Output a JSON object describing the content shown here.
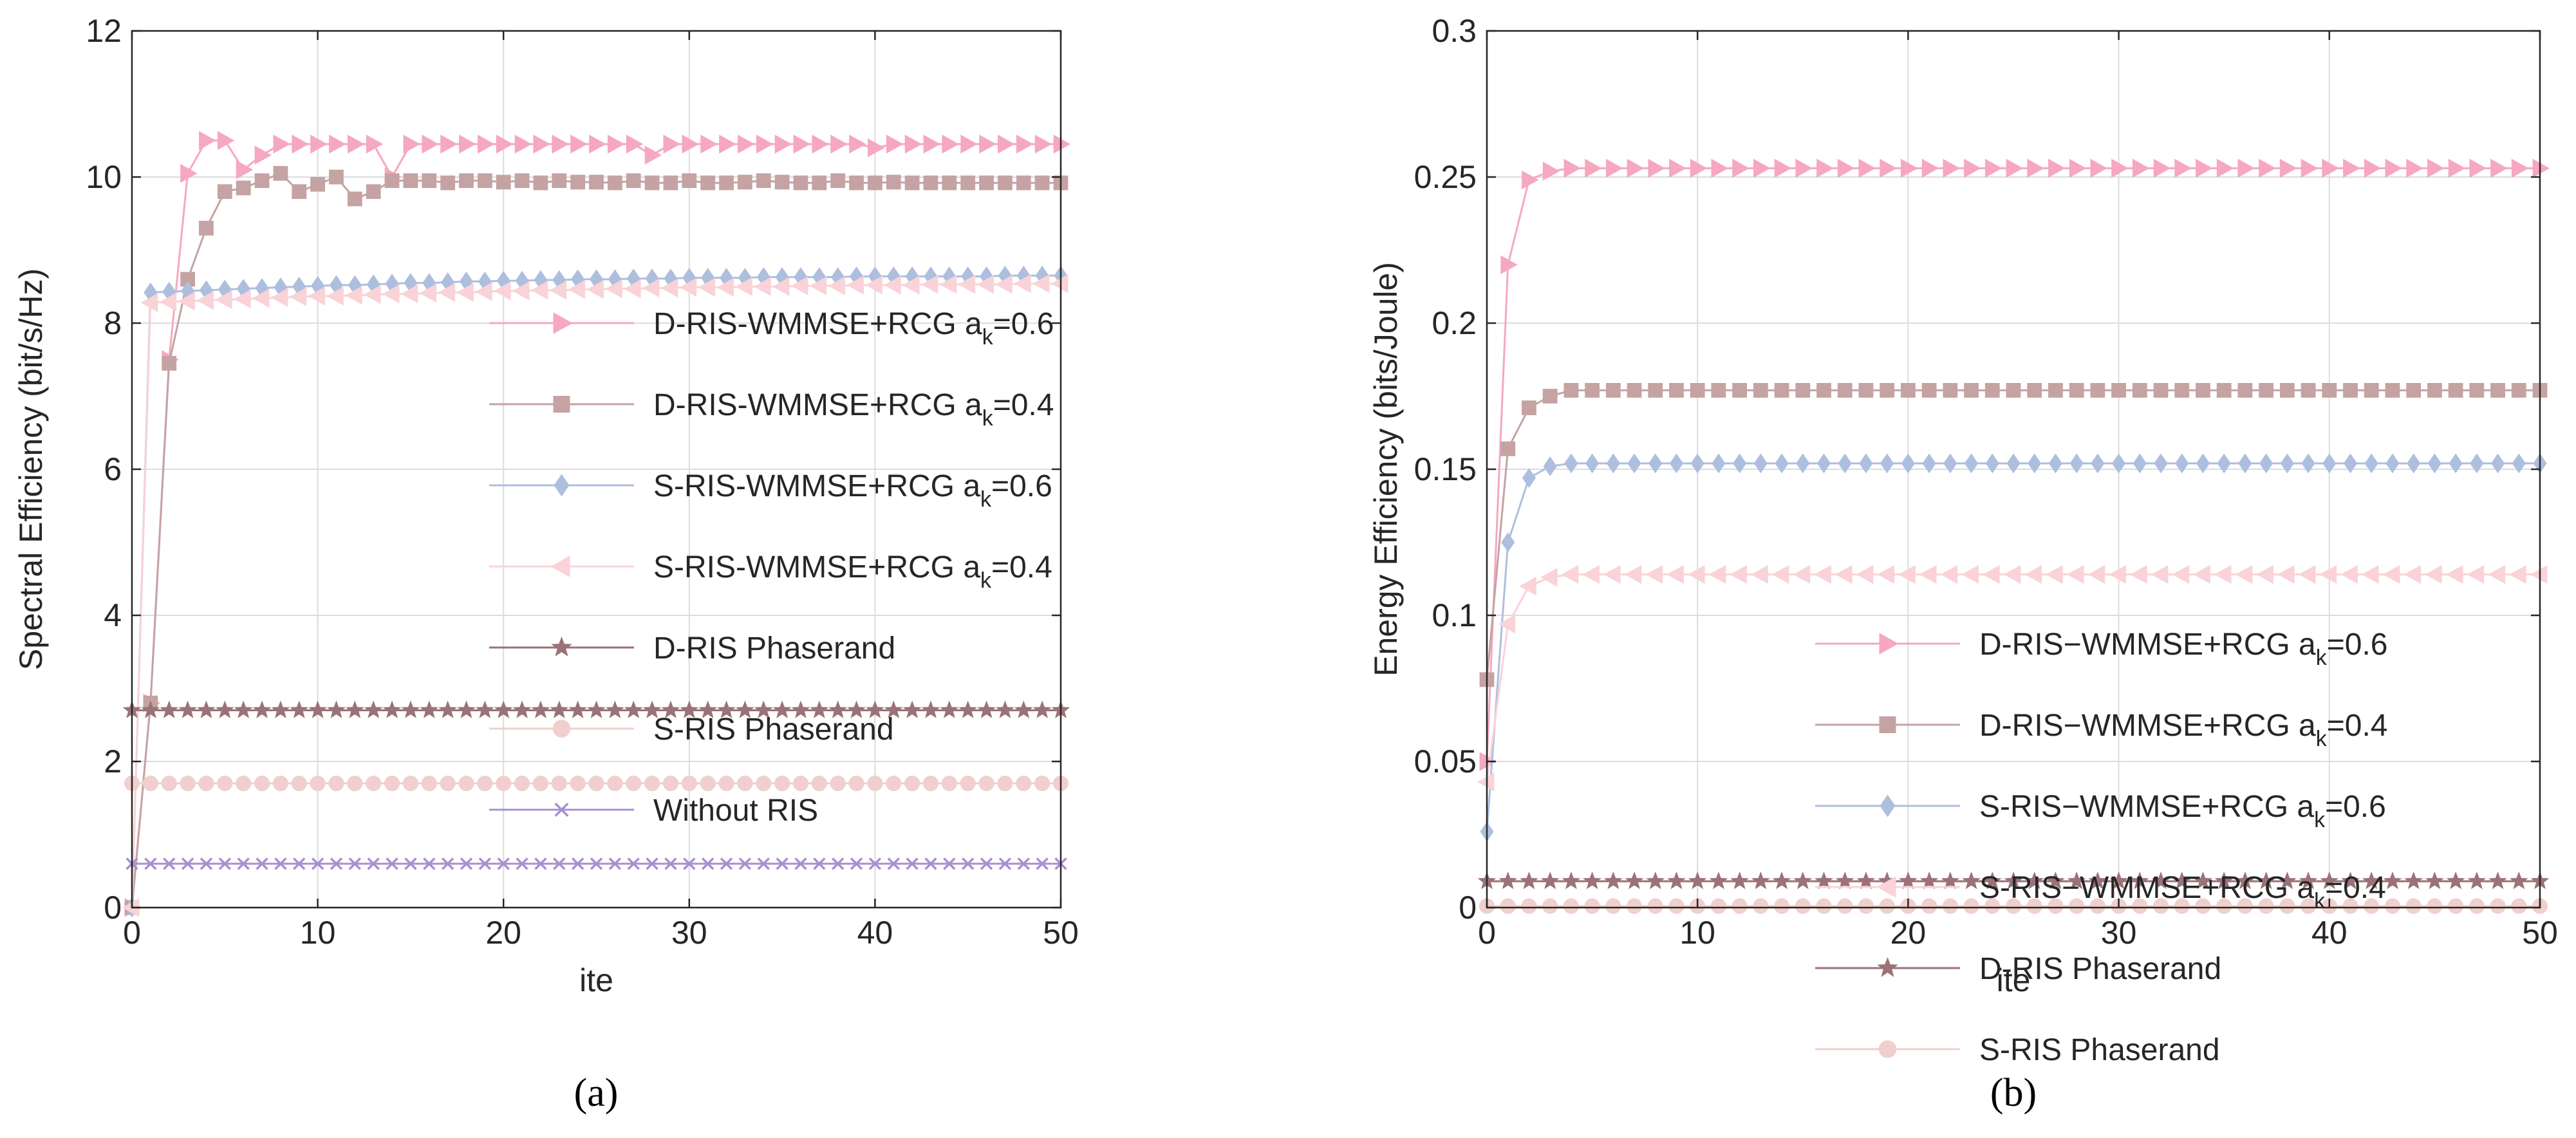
{
  "chart_data": [
    {
      "id": "a",
      "type": "line",
      "caption": "(a)",
      "xlabel": "ite",
      "ylabel": "Spectral Efficiency  (bit/s/Hz)",
      "xlim": [
        0,
        50
      ],
      "ylim": [
        0,
        12
      ],
      "xticks": [
        0,
        10,
        20,
        30,
        40,
        50
      ],
      "yticks": [
        0,
        2,
        4,
        6,
        8,
        10,
        12
      ],
      "grid": true,
      "legend_position": "right-center",
      "series": [
        {
          "name": "D-RIS-WMMSE+RCG a_k=0.6",
          "label": "D-RIS-WMMSE+RCG a",
          "sub": "k",
          "tail": "=0.6",
          "color": "#f5a8bf",
          "marker": "triangle-right",
          "values": [
            0,
            2.8,
            7.5,
            10.05,
            10.5,
            10.5,
            10.1,
            10.3,
            10.45,
            10.45,
            10.45,
            10.45,
            10.45,
            10.45,
            10.0,
            10.45,
            10.45,
            10.45,
            10.45,
            10.45,
            10.45,
            10.45,
            10.45,
            10.45,
            10.45,
            10.45,
            10.45,
            10.45,
            10.3,
            10.45,
            10.45,
            10.45,
            10.45,
            10.45,
            10.45,
            10.45,
            10.45,
            10.45,
            10.45,
            10.45,
            10.4,
            10.45,
            10.45,
            10.45,
            10.45,
            10.45,
            10.45,
            10.45,
            10.45,
            10.45,
            10.45
          ]
        },
        {
          "name": "D-RIS-WMMSE+RCG a_k=0.4",
          "label": "D-RIS-WMMSE+RCG a",
          "sub": "k",
          "tail": "=0.4",
          "color": "#c5a3a3",
          "marker": "square",
          "values": [
            0,
            2.8,
            7.45,
            8.6,
            9.3,
            9.8,
            9.85,
            9.95,
            10.05,
            9.8,
            9.9,
            10.0,
            9.7,
            9.8,
            9.95,
            9.95,
            9.95,
            9.92,
            9.95,
            9.95,
            9.93,
            9.95,
            9.92,
            9.95,
            9.93,
            9.93,
            9.92,
            9.95,
            9.92,
            9.92,
            9.95,
            9.92,
            9.92,
            9.93,
            9.95,
            9.93,
            9.92,
            9.92,
            9.95,
            9.92,
            9.92,
            9.93,
            9.92,
            9.92,
            9.92,
            9.92,
            9.92,
            9.92,
            9.92,
            9.92,
            9.92
          ]
        },
        {
          "name": "S-RIS-WMMSE+RCG a_k=0.6",
          "label": "S-RIS-WMMSE+RCG a",
          "sub": "k",
          "tail": "=0.6",
          "color": "#aebfde",
          "marker": "diamond",
          "values": [
            0,
            8.42,
            8.43,
            8.44,
            8.45,
            8.46,
            8.47,
            8.48,
            8.49,
            8.5,
            8.51,
            8.52,
            8.52,
            8.53,
            8.54,
            8.55,
            8.55,
            8.56,
            8.57,
            8.57,
            8.58,
            8.58,
            8.59,
            8.59,
            8.6,
            8.6,
            8.6,
            8.61,
            8.61,
            8.61,
            8.62,
            8.62,
            8.62,
            8.62,
            8.63,
            8.63,
            8.63,
            8.63,
            8.63,
            8.64,
            8.64,
            8.64,
            8.64,
            8.64,
            8.64,
            8.64,
            8.64,
            8.65,
            8.65,
            8.65,
            8.65
          ]
        },
        {
          "name": "S-RIS-WMMSE+RCG a_k=0.4",
          "label": "S-RIS-WMMSE+RCG a",
          "sub": "k",
          "tail": "=0.4",
          "color": "#f9d3d8",
          "marker": "triangle-left",
          "values": [
            0,
            8.28,
            8.29,
            8.3,
            8.31,
            8.32,
            8.33,
            8.34,
            8.35,
            8.36,
            8.37,
            8.37,
            8.38,
            8.39,
            8.4,
            8.4,
            8.41,
            8.42,
            8.42,
            8.43,
            8.44,
            8.44,
            8.45,
            8.45,
            8.46,
            8.46,
            8.47,
            8.47,
            8.48,
            8.48,
            8.49,
            8.49,
            8.49,
            8.5,
            8.5,
            8.5,
            8.51,
            8.51,
            8.51,
            8.52,
            8.52,
            8.52,
            8.52,
            8.53,
            8.53,
            8.53,
            8.53,
            8.53,
            8.54,
            8.54,
            8.54
          ]
        },
        {
          "name": "D-RIS Phaserand",
          "label": "D-RIS Phaserand",
          "sub": "",
          "tail": "",
          "color": "#9a7277",
          "marker": "star",
          "values": [
            2.7,
            2.7,
            2.7,
            2.7,
            2.7,
            2.7,
            2.7,
            2.7,
            2.7,
            2.7,
            2.7,
            2.7,
            2.7,
            2.7,
            2.7,
            2.7,
            2.7,
            2.7,
            2.7,
            2.7,
            2.7,
            2.7,
            2.7,
            2.7,
            2.7,
            2.7,
            2.7,
            2.7,
            2.7,
            2.7,
            2.7,
            2.7,
            2.7,
            2.7,
            2.7,
            2.7,
            2.7,
            2.7,
            2.7,
            2.7,
            2.7,
            2.7,
            2.7,
            2.7,
            2.7,
            2.7,
            2.7,
            2.7,
            2.7,
            2.7,
            2.7
          ]
        },
        {
          "name": "S-RIS Phaserand",
          "label": "S-RIS Phaserand",
          "sub": "",
          "tail": "",
          "color": "#f0cfcd",
          "marker": "circle",
          "values": [
            1.7,
            1.7,
            1.7,
            1.7,
            1.7,
            1.7,
            1.7,
            1.7,
            1.7,
            1.7,
            1.7,
            1.7,
            1.7,
            1.7,
            1.7,
            1.7,
            1.7,
            1.7,
            1.7,
            1.7,
            1.7,
            1.7,
            1.7,
            1.7,
            1.7,
            1.7,
            1.7,
            1.7,
            1.7,
            1.7,
            1.7,
            1.7,
            1.7,
            1.7,
            1.7,
            1.7,
            1.7,
            1.7,
            1.7,
            1.7,
            1.7,
            1.7,
            1.7,
            1.7,
            1.7,
            1.7,
            1.7,
            1.7,
            1.7,
            1.7,
            1.7
          ]
        },
        {
          "name": "Without RIS",
          "label": "Without RIS",
          "sub": "",
          "tail": "",
          "color": "#a88fd0",
          "marker": "x",
          "values": [
            0.6,
            0.6,
            0.6,
            0.6,
            0.6,
            0.6,
            0.6,
            0.6,
            0.6,
            0.6,
            0.6,
            0.6,
            0.6,
            0.6,
            0.6,
            0.6,
            0.6,
            0.6,
            0.6,
            0.6,
            0.6,
            0.6,
            0.6,
            0.6,
            0.6,
            0.6,
            0.6,
            0.6,
            0.6,
            0.6,
            0.6,
            0.6,
            0.6,
            0.6,
            0.6,
            0.6,
            0.6,
            0.6,
            0.6,
            0.6,
            0.6,
            0.6,
            0.6,
            0.6,
            0.6,
            0.6,
            0.6,
            0.6,
            0.6,
            0.6,
            0.6
          ]
        }
      ]
    },
    {
      "id": "b",
      "type": "line",
      "caption": "(b)",
      "xlabel": "ite",
      "ylabel": "Energy Efficiency  (bits/Joule)",
      "xlim": [
        0,
        50
      ],
      "ylim": [
        0,
        0.3
      ],
      "xticks": [
        0,
        10,
        20,
        30,
        40,
        50
      ],
      "yticks": [
        0,
        0.05,
        0.1,
        0.15,
        0.2,
        0.25,
        0.3
      ],
      "grid": true,
      "legend_position": "right-center",
      "series": [
        {
          "name": "D-RIS-WMMSE+RCG a_k=0.6",
          "label": "D-RIS−WMMSE+RCG a",
          "sub": "k",
          "tail": "=0.6",
          "color": "#f5a8bf",
          "marker": "triangle-right",
          "values": [
            0.05,
            0.22,
            0.249,
            0.252,
            0.253,
            0.253,
            0.253,
            0.253,
            0.253,
            0.253,
            0.253,
            0.253,
            0.253,
            0.253,
            0.253,
            0.253,
            0.253,
            0.253,
            0.253,
            0.253,
            0.253,
            0.253,
            0.253,
            0.253,
            0.253,
            0.253,
            0.253,
            0.253,
            0.253,
            0.253,
            0.253,
            0.253,
            0.253,
            0.253,
            0.253,
            0.253,
            0.253,
            0.253,
            0.253,
            0.253,
            0.253,
            0.253,
            0.253,
            0.253,
            0.253,
            0.253,
            0.253,
            0.253,
            0.253,
            0.253,
            0.253
          ]
        },
        {
          "name": "D-RIS-WMMSE+RCG a_k=0.4",
          "label": "D-RIS−WMMSE+RCG a",
          "sub": "k",
          "tail": "=0.4",
          "color": "#c5a3a3",
          "marker": "square",
          "values": [
            0.078,
            0.157,
            0.171,
            0.175,
            0.177,
            0.177,
            0.177,
            0.177,
            0.177,
            0.177,
            0.177,
            0.177,
            0.177,
            0.177,
            0.177,
            0.177,
            0.177,
            0.177,
            0.177,
            0.177,
            0.177,
            0.177,
            0.177,
            0.177,
            0.177,
            0.177,
            0.177,
            0.177,
            0.177,
            0.177,
            0.177,
            0.177,
            0.177,
            0.177,
            0.177,
            0.177,
            0.177,
            0.177,
            0.177,
            0.177,
            0.177,
            0.177,
            0.177,
            0.177,
            0.177,
            0.177,
            0.177,
            0.177,
            0.177,
            0.177,
            0.177
          ]
        },
        {
          "name": "S-RIS-WMMSE+RCG a_k=0.6",
          "label": "S-RIS−WMMSE+RCG a",
          "sub": "k",
          "tail": "=0.6",
          "color": "#aebfde",
          "marker": "diamond",
          "values": [
            0.026,
            0.125,
            0.147,
            0.151,
            0.152,
            0.152,
            0.152,
            0.152,
            0.152,
            0.152,
            0.152,
            0.152,
            0.152,
            0.152,
            0.152,
            0.152,
            0.152,
            0.152,
            0.152,
            0.152,
            0.152,
            0.152,
            0.152,
            0.152,
            0.152,
            0.152,
            0.152,
            0.152,
            0.152,
            0.152,
            0.152,
            0.152,
            0.152,
            0.152,
            0.152,
            0.152,
            0.152,
            0.152,
            0.152,
            0.152,
            0.152,
            0.152,
            0.152,
            0.152,
            0.152,
            0.152,
            0.152,
            0.152,
            0.152,
            0.152,
            0.152
          ]
        },
        {
          "name": "S-RIS-WMMSE+RCG a_k=0.4",
          "label": "S-RIS−WMMSE+RCG a",
          "sub": "k",
          "tail": "=0.4",
          "color": "#f9d3d8",
          "marker": "triangle-left",
          "values": [
            0.043,
            0.097,
            0.11,
            0.113,
            0.114,
            0.114,
            0.114,
            0.114,
            0.114,
            0.114,
            0.114,
            0.114,
            0.114,
            0.114,
            0.114,
            0.114,
            0.114,
            0.114,
            0.114,
            0.114,
            0.114,
            0.114,
            0.114,
            0.114,
            0.114,
            0.114,
            0.114,
            0.114,
            0.114,
            0.114,
            0.114,
            0.114,
            0.114,
            0.114,
            0.114,
            0.114,
            0.114,
            0.114,
            0.114,
            0.114,
            0.114,
            0.114,
            0.114,
            0.114,
            0.114,
            0.114,
            0.114,
            0.114,
            0.114,
            0.114,
            0.114
          ]
        },
        {
          "name": "D-RIS Phaserand",
          "label": "D-RIS Phaserand",
          "sub": "",
          "tail": "",
          "color": "#9a7277",
          "marker": "star",
          "values": [
            0.009,
            0.009,
            0.009,
            0.009,
            0.009,
            0.009,
            0.009,
            0.009,
            0.009,
            0.009,
            0.009,
            0.009,
            0.009,
            0.009,
            0.009,
            0.009,
            0.009,
            0.009,
            0.009,
            0.009,
            0.009,
            0.009,
            0.009,
            0.009,
            0.009,
            0.009,
            0.009,
            0.009,
            0.009,
            0.009,
            0.009,
            0.009,
            0.009,
            0.009,
            0.009,
            0.009,
            0.009,
            0.009,
            0.009,
            0.009,
            0.009,
            0.009,
            0.009,
            0.009,
            0.009,
            0.009,
            0.009,
            0.009,
            0.009,
            0.009,
            0.009
          ]
        },
        {
          "name": "S-RIS Phaserand",
          "label": "S-RIS Phaserand",
          "sub": "",
          "tail": "",
          "color": "#f0cfcd",
          "marker": "circle",
          "values": [
            0.0005,
            0.0005,
            0.0005,
            0.0005,
            0.0005,
            0.0005,
            0.0005,
            0.0005,
            0.0005,
            0.0005,
            0.0005,
            0.0005,
            0.0005,
            0.0005,
            0.0005,
            0.0005,
            0.0005,
            0.0005,
            0.0005,
            0.0005,
            0.0005,
            0.0005,
            0.0005,
            0.0005,
            0.0005,
            0.0005,
            0.0005,
            0.0005,
            0.0005,
            0.0005,
            0.0005,
            0.0005,
            0.0005,
            0.0005,
            0.0005,
            0.0005,
            0.0005,
            0.0005,
            0.0005,
            0.0005,
            0.0005,
            0.0005,
            0.0005,
            0.0005,
            0.0005,
            0.0005,
            0.0005,
            0.0005,
            0.0005,
            0.0005,
            0.0005
          ]
        }
      ]
    }
  ]
}
